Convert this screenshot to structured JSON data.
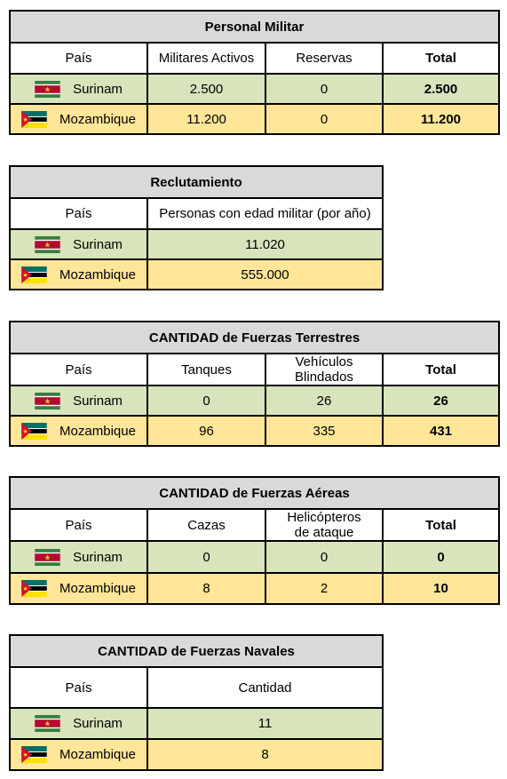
{
  "tables": {
    "personal": {
      "title": "Personal Militar",
      "headers": [
        "País",
        "Militares Activos",
        "Reservas",
        "Total"
      ],
      "rows": [
        {
          "country": "Surinam",
          "values": [
            "2.500",
            "0",
            "2.500"
          ]
        },
        {
          "country": "Mozambique",
          "values": [
            "11.200",
            "0",
            "11.200"
          ]
        }
      ]
    },
    "reclutamiento": {
      "title": "Reclutamiento",
      "headers": [
        "País",
        "Personas con edad militar (por año)"
      ],
      "rows": [
        {
          "country": "Surinam",
          "values": [
            "11.020"
          ]
        },
        {
          "country": "Mozambique",
          "values": [
            "555.000"
          ]
        }
      ]
    },
    "terrestres": {
      "title": "CANTIDAD de Fuerzas Terrestres",
      "headers": [
        "País",
        "Tanques",
        "Vehículos Blindados",
        "Total"
      ],
      "rows": [
        {
          "country": "Surinam",
          "values": [
            "0",
            "26",
            "26"
          ]
        },
        {
          "country": "Mozambique",
          "values": [
            "96",
            "335",
            "431"
          ]
        }
      ]
    },
    "aereas": {
      "title": "CANTIDAD de Fuerzas Aéreas",
      "headers": [
        "País",
        "Cazas",
        "Helicópteros de ataque",
        "Total"
      ],
      "rows": [
        {
          "country": "Surinam",
          "values": [
            "0",
            "0",
            "0"
          ]
        },
        {
          "country": "Mozambique",
          "values": [
            "8",
            "2",
            "10"
          ]
        }
      ]
    },
    "navales": {
      "title": "CANTIDAD de Fuerzas Navales",
      "headers": [
        "País",
        "Cantidad"
      ],
      "rows": [
        {
          "country": "Surinam",
          "values": [
            "11"
          ]
        },
        {
          "country": "Mozambique",
          "values": [
            "8"
          ]
        }
      ]
    }
  },
  "colors": {
    "title_bg": "#d9d9d9",
    "surinam_row": "#d8e4bc",
    "mozambique_row": "#ffe699"
  },
  "icons": [
    "surinam-flag-icon",
    "mozambique-flag-icon"
  ]
}
